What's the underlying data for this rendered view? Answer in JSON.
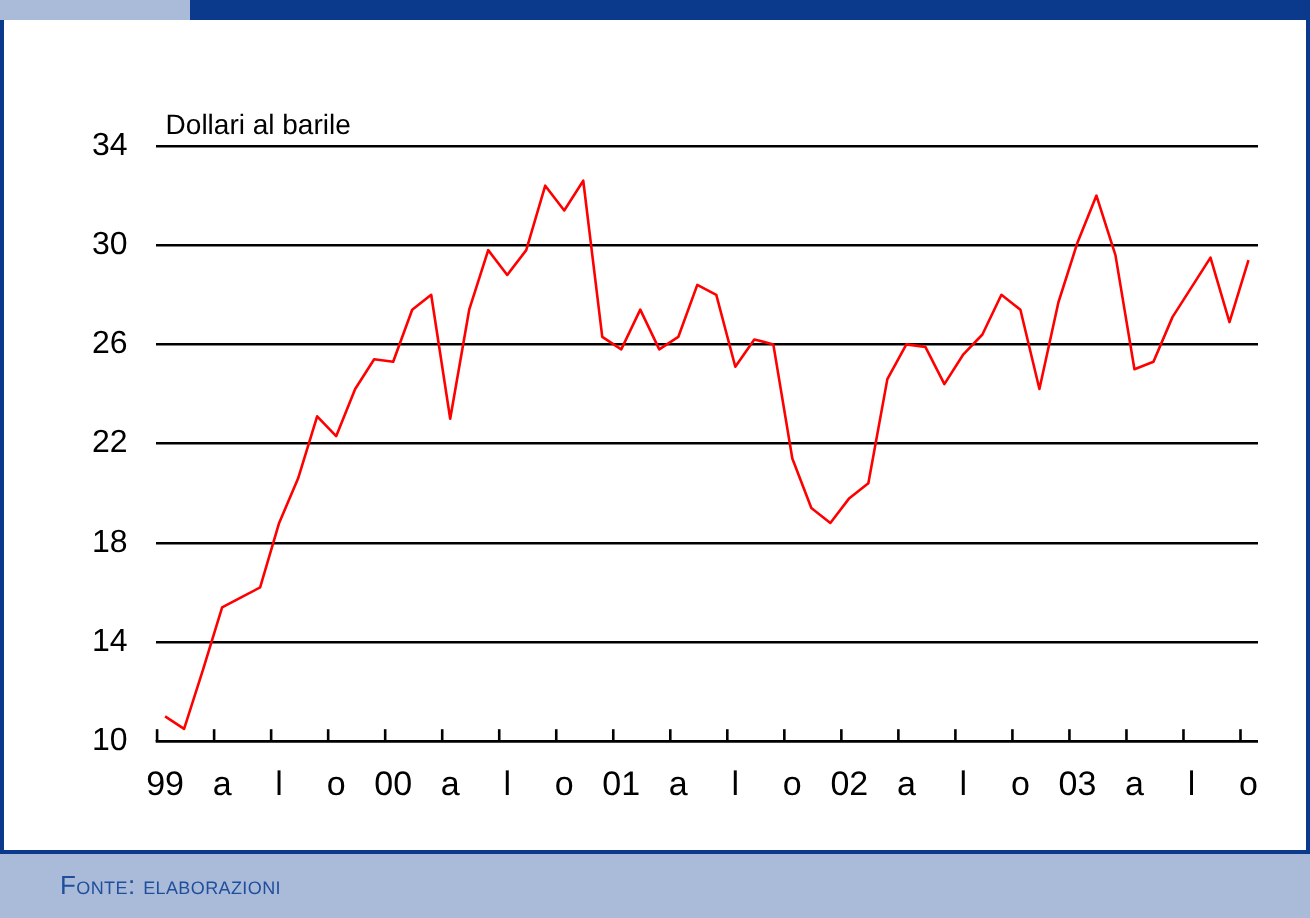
{
  "chart_data": {
    "type": "line",
    "ylabel": "Dollari al barile",
    "annotations": [
      "Fonte: elaborazioni"
    ],
    "categories": [
      "99",
      null,
      null,
      "a",
      null,
      null,
      "l",
      null,
      null,
      "o",
      null,
      null,
      "00",
      null,
      null,
      "a",
      null,
      null,
      "l",
      null,
      null,
      "o",
      null,
      null,
      "01",
      null,
      null,
      "a",
      null,
      null,
      "l",
      null,
      null,
      "o",
      null,
      null,
      "02",
      null,
      null,
      "a",
      null,
      null,
      "l",
      null,
      null,
      "o",
      null,
      null,
      "03",
      null,
      null,
      "a",
      null,
      null,
      "l",
      null,
      null,
      "o"
    ],
    "series": [
      {
        "color": "#ff0000",
        "values": [
          11.0,
          10.5,
          12.9,
          15.4,
          15.8,
          16.2,
          18.8,
          20.6,
          23.1,
          22.3,
          24.2,
          25.4,
          25.3,
          27.4,
          28.0,
          23.0,
          27.4,
          29.8,
          28.8,
          29.8,
          32.4,
          31.4,
          32.6,
          26.3,
          25.8,
          27.4,
          25.8,
          26.3,
          28.4,
          28.0,
          25.1,
          26.2,
          26.0,
          21.4,
          19.4,
          18.8,
          19.8,
          20.4,
          24.6,
          26.0,
          25.9,
          24.4,
          25.6,
          26.4,
          28.0,
          27.4,
          24.2,
          27.7,
          30.1,
          32.0,
          29.6,
          25.0,
          25.3,
          27.1,
          28.3,
          29.5,
          26.9,
          29.4
        ]
      }
    ],
    "ylim": [
      10,
      34
    ],
    "yticks": [
      10,
      14,
      18,
      22,
      26,
      30,
      34
    ],
    "grid": "y",
    "legend": false,
    "marker": "none",
    "line_style": "solid"
  }
}
